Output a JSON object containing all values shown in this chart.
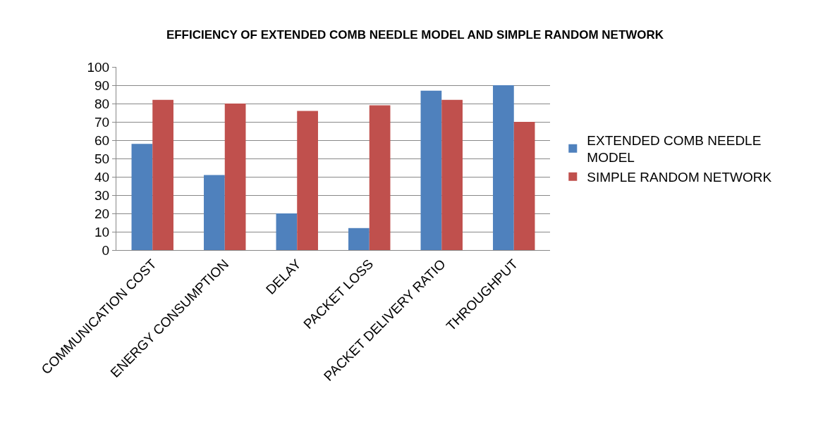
{
  "chart_data": {
    "type": "bar",
    "title": "EFFICIENCY OF EXTENDED COMB NEEDLE MODEL AND SIMPLE RANDOM NETWORK",
    "categories": [
      "COMMUNICATION COST",
      "ENERGY CONSUMPTION",
      "DELAY",
      "PACKET LOSS",
      "PACKET DELIVERY RATIO",
      "THROUGHPUT"
    ],
    "series": [
      {
        "name": "EXTENDED COMB NEEDLE MODEL",
        "color": "#4f81bd",
        "values": [
          58,
          41,
          20,
          12,
          87,
          90
        ]
      },
      {
        "name": "SIMPLE RANDOM NETWORK",
        "color": "#c0504d",
        "values": [
          82,
          80,
          76,
          79,
          82,
          70
        ]
      }
    ],
    "ylim": [
      0,
      100
    ],
    "yticks": [
      0,
      10,
      20,
      30,
      40,
      50,
      60,
      70,
      80,
      90,
      100
    ],
    "grid": "y",
    "legend": "right"
  }
}
